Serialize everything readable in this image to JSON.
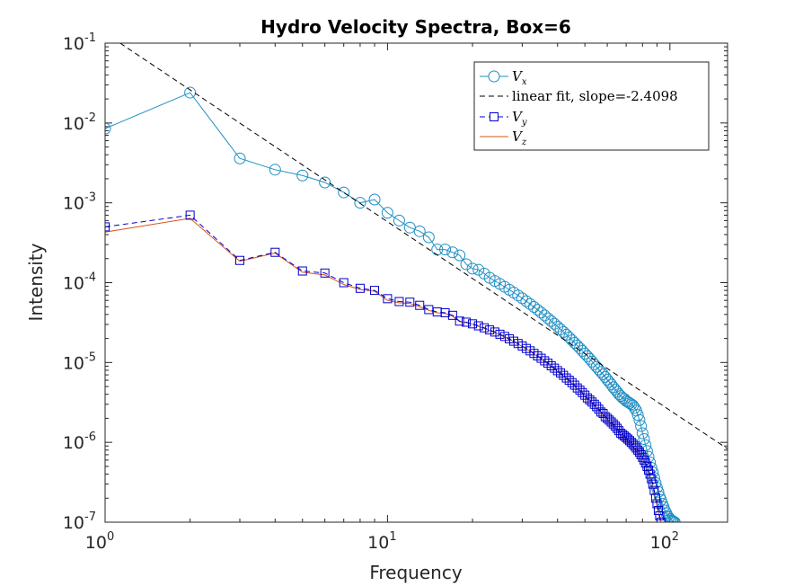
{
  "chart_data": {
    "type": "line",
    "title": "Hydro Velocity Spectra, Box=6",
    "xlabel": "Frequency",
    "ylabel": "Intensity",
    "xscale": "log",
    "yscale": "log",
    "xlim": [
      1,
      160
    ],
    "ylim": [
      1e-07,
      0.1
    ],
    "x_tick_labels": [
      {
        "base": "10",
        "exp": "0"
      },
      {
        "base": "10",
        "exp": "1"
      },
      {
        "base": "10",
        "exp": "2"
      }
    ],
    "y_tick_labels": [
      {
        "base": "10",
        "exp": "-7"
      },
      {
        "base": "10",
        "exp": "-6"
      },
      {
        "base": "10",
        "exp": "-5"
      },
      {
        "base": "10",
        "exp": "-4"
      },
      {
        "base": "10",
        "exp": "-3"
      },
      {
        "base": "10",
        "exp": "-2"
      },
      {
        "base": "10",
        "exp": "-1"
      }
    ],
    "legend_position": "top-right",
    "legend": [
      {
        "var": "V",
        "sub": "x",
        "text": ""
      },
      {
        "var": "",
        "sub": "",
        "text": "linear fit, slope=-2.4098"
      },
      {
        "var": "V",
        "sub": "y",
        "text": ""
      },
      {
        "var": "V",
        "sub": "z",
        "text": ""
      }
    ],
    "colors": {
      "vx": "#1f8fc4",
      "fit": "#000000",
      "vy": "#0000cc",
      "vz": "#d95319"
    },
    "fit": {
      "slope": -2.4098,
      "x": [
        1.13,
        160
      ],
      "y": [
        0.1,
        8.3e-07
      ]
    },
    "series": [
      {
        "key": "vx",
        "x": [
          1,
          2,
          3,
          4,
          5,
          6,
          7,
          8,
          9,
          10,
          11,
          12,
          13,
          14,
          15,
          16,
          17,
          18,
          19,
          20,
          21,
          22,
          23,
          24,
          25,
          26,
          27,
          28,
          29,
          30,
          31,
          32,
          33,
          34,
          35,
          36,
          37,
          38,
          39,
          40,
          41,
          42,
          43,
          44,
          45,
          46,
          47,
          48,
          49,
          50,
          51,
          52,
          53,
          54,
          55,
          56,
          57,
          58,
          59,
          60,
          61,
          62,
          63,
          64,
          65,
          66,
          67,
          68,
          69,
          70,
          71,
          72,
          73,
          74,
          75,
          76,
          77,
          78,
          79,
          80,
          81,
          82,
          83,
          84,
          85,
          86,
          87,
          88,
          89,
          90,
          91,
          92,
          93,
          94,
          95,
          96,
          97,
          98,
          99,
          100,
          101,
          102,
          103,
          104
        ],
        "y": [
          0.0085,
          0.024,
          0.0036,
          0.0026,
          0.0022,
          0.0018,
          0.00135,
          0.001,
          0.0011,
          0.00075,
          0.0006,
          0.00049,
          0.00044,
          0.00037,
          0.00026,
          0.00026,
          0.00024,
          0.00022,
          0.00017,
          0.00015,
          0.000145,
          0.00013,
          0.000115,
          0.000105,
          9.65e-05,
          8.87e-05,
          8.16e-05,
          7.51e-05,
          6.92e-05,
          6.37e-05,
          5.86e-05,
          5.4e-05,
          4.97e-05,
          4.58e-05,
          4.22e-05,
          3.89e-05,
          3.58e-05,
          3.3e-05,
          3.05e-05,
          2.82e-05,
          2.61e-05,
          2.41e-05,
          2.23e-05,
          2.06e-05,
          1.9e-05,
          1.76e-05,
          1.63e-05,
          1.51e-05,
          1.4e-05,
          1.29e-05,
          1.2e-05,
          1.11e-05,
          1.03e-05,
          9.5e-06,
          8.8e-06,
          8.2e-06,
          7.6e-06,
          7.1e-06,
          6.6e-06,
          6.1e-06,
          5.7e-06,
          5.3e-06,
          4.9e-06,
          4.6e-06,
          4.3e-06,
          4e-06,
          3.8e-06,
          3.6e-06,
          3.5e-06,
          3.3e-06,
          3.2e-06,
          3.1e-06,
          3e-06,
          2.9e-06,
          2.7e-06,
          2.5e-06,
          2.2e-06,
          1.9e-06,
          1.6e-06,
          1.3e-06,
          1.1e-06,
          9.2e-07,
          7.8e-07,
          6.6e-07,
          5.6e-07,
          4.8e-07,
          4.2e-07,
          3.6e-07,
          3.1e-07,
          2.7e-07,
          2.4e-07,
          2.1e-07,
          1.9e-07,
          1.7e-07,
          1.55e-07,
          1.4e-07,
          1.3e-07,
          1.2e-07,
          1.15e-07,
          1.1e-07,
          1.06e-07,
          1.04e-07,
          1.02e-07,
          1e-07
        ]
      },
      {
        "key": "vy",
        "x": [
          1,
          2,
          3,
          4,
          5,
          6,
          7,
          8,
          9,
          10,
          11,
          12,
          13,
          14,
          15,
          16,
          17,
          18,
          19,
          20,
          21,
          22,
          23,
          24,
          25,
          26,
          27,
          28,
          29,
          30,
          31,
          32,
          33,
          34,
          35,
          36,
          37,
          38,
          39,
          40,
          41,
          42,
          43,
          44,
          45,
          46,
          47,
          48,
          49,
          50,
          51,
          52,
          53,
          54,
          55,
          56,
          57,
          58,
          59,
          60,
          61,
          62,
          63,
          64,
          65,
          66,
          67,
          68,
          69,
          70,
          71,
          72,
          73,
          74,
          75,
          76,
          77,
          78,
          79,
          80,
          81,
          82,
          83,
          84,
          85,
          86,
          87,
          88,
          89,
          90,
          91,
          92,
          93
        ],
        "y": [
          0.0005,
          0.0007,
          0.00019,
          0.00024,
          0.00014,
          0.000132,
          0.0001,
          8.5e-05,
          8e-05,
          6.3e-05,
          5.8e-05,
          5.7e-05,
          5.2e-05,
          4.6e-05,
          4.3e-05,
          4.2e-05,
          3.9e-05,
          3.3e-05,
          3.2e-05,
          3.05e-05,
          2.88e-05,
          2.72e-05,
          2.56e-05,
          2.41e-05,
          2.26e-05,
          2.12e-05,
          1.98e-05,
          1.85e-05,
          1.73e-05,
          1.61e-05,
          1.5e-05,
          1.4e-05,
          1.3e-05,
          1.21e-05,
          1.13e-05,
          1.05e-05,
          9.8e-06,
          9.1e-06,
          8.5e-06,
          7.9e-06,
          7.4e-06,
          6.9e-06,
          6.4e-06,
          6e-06,
          5.6e-06,
          5.2e-06,
          4.8e-06,
          4.5e-06,
          4.2e-06,
          3.9e-06,
          3.6e-06,
          3.4e-06,
          3.2e-06,
          3e-06,
          2.8e-06,
          2.6e-06,
          2.4e-06,
          2.3e-06,
          2.1e-06,
          2e-06,
          1.9e-06,
          1.8e-06,
          1.7e-06,
          1.6e-06,
          1.5e-06,
          1.4e-06,
          1.3e-06,
          1.25e-06,
          1.2e-06,
          1.15e-06,
          1.1e-06,
          1.05e-06,
          1e-06,
          9.5e-07,
          9e-07,
          8.5e-07,
          8e-07,
          7.5e-07,
          7e-07,
          6.5e-07,
          6e-07,
          5.5e-07,
          5e-07,
          4.5e-07,
          4e-07,
          3.5e-07,
          3e-07,
          2.5e-07,
          2e-07,
          1.7e-07,
          1.4e-07,
          1.2e-07,
          1e-07
        ]
      },
      {
        "key": "vz",
        "x": [
          1,
          2,
          3,
          4,
          5,
          6,
          7,
          8,
          9,
          10,
          11,
          12,
          13,
          14,
          15,
          16,
          17,
          18,
          19,
          20,
          21,
          22,
          23,
          24,
          25,
          26,
          27,
          28,
          29,
          30,
          31,
          32,
          33,
          34,
          35,
          36,
          37,
          38,
          39,
          40,
          41,
          42,
          43,
          44,
          45,
          46,
          47,
          48,
          49,
          50,
          51,
          52,
          53,
          54,
          55,
          56,
          57,
          58,
          59,
          60,
          61,
          62,
          63,
          64,
          65,
          66,
          67,
          68,
          69,
          70,
          71,
          72,
          73,
          74,
          75,
          76,
          77,
          78,
          79,
          80,
          81,
          82,
          83,
          84,
          85,
          86,
          87,
          88,
          89,
          90,
          91,
          92,
          93
        ],
        "y": [
          0.00043,
          0.00064,
          0.000185,
          0.000235,
          0.000135,
          0.000125,
          9.5e-05,
          8.2e-05,
          7.8e-05,
          6e-05,
          5.6e-05,
          5.5e-05,
          5e-05,
          4.5e-05,
          4.2e-05,
          4.1e-05,
          3.8e-05,
          3.25e-05,
          3.15e-05,
          3e-05,
          2.83e-05,
          2.67e-05,
          2.51e-05,
          2.37e-05,
          2.22e-05,
          2.08e-05,
          1.95e-05,
          1.82e-05,
          1.7e-05,
          1.58e-05,
          1.48e-05,
          1.38e-05,
          1.28e-05,
          1.19e-05,
          1.11e-05,
          1.03e-05,
          9.6e-06,
          8.9e-06,
          8.3e-06,
          7.7e-06,
          7.2e-06,
          6.7e-06,
          6.3e-06,
          5.9e-06,
          5.5e-06,
          5.1e-06,
          4.7e-06,
          4.4e-06,
          4.1e-06,
          3.8e-06,
          3.5e-06,
          3.3e-06,
          3.1e-06,
          2.9e-06,
          2.7e-06,
          2.5e-06,
          2.4e-06,
          2.2e-06,
          2.1e-06,
          1.9e-06,
          1.8e-06,
          1.7e-06,
          1.6e-06,
          1.5e-06,
          1.4e-06,
          1.3e-06,
          1.2e-06,
          1.2e-06,
          1.1e-06,
          1.1e-06,
          1e-06,
          9.8e-07,
          9.3e-07,
          8.8e-07,
          8.3e-07,
          7.8e-07,
          7.4e-07,
          7e-07,
          6.6e-07,
          6.2e-07,
          5.7e-07,
          5.2e-07,
          4.7e-07,
          4.2e-07,
          3.7e-07,
          3.2e-07,
          2.7e-07,
          2.3e-07,
          1.9e-07,
          1.6e-07,
          1.3e-07,
          1.1e-07,
          1e-07
        ]
      }
    ]
  }
}
